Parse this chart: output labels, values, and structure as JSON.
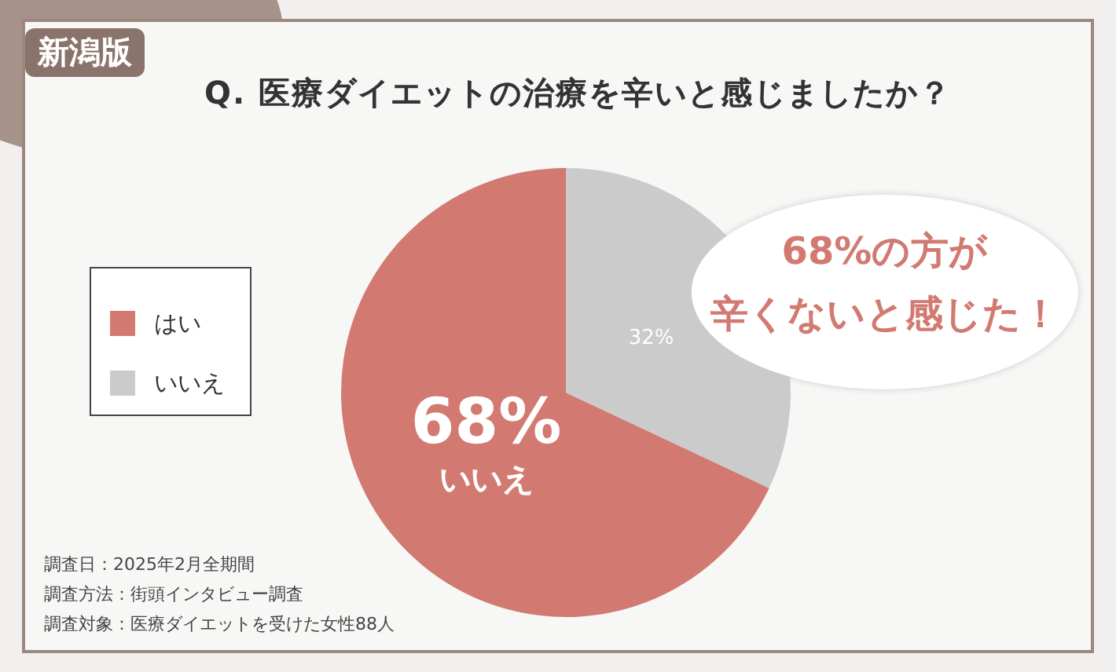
{
  "chart_data": {
    "type": "pie",
    "title": "Q. 医療ダイエットの治療を辛いと感じましたか？",
    "categories": [
      "はい",
      "いいえ"
    ],
    "values": [
      68,
      32
    ],
    "colors": [
      "#d27a72",
      "#cbcbcb"
    ],
    "value_labels": [
      "68%",
      "32%"
    ],
    "legend": "left",
    "annotations": [
      "新潟版",
      "いいえ",
      "68%の方が",
      "辛くないと感じた！",
      "調査日：2025年2月全期間",
      "調査方法：街頭インタビュー調査",
      "調査対象：医療ダイエットを受けた女性88人"
    ]
  }
}
